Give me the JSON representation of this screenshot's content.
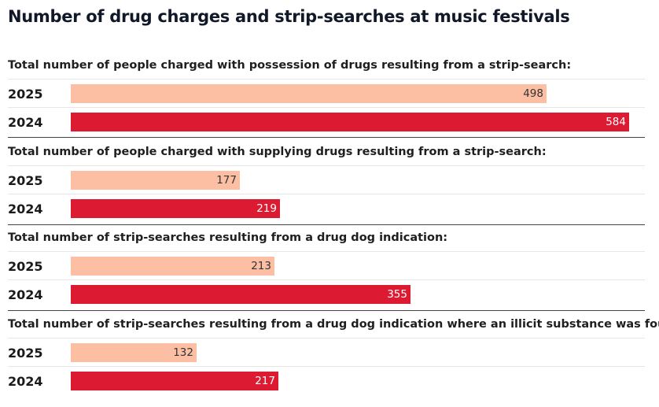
{
  "title": "Number of drug charges and strip-searches at music festivals",
  "colors": {
    "2025": "#fcbfa4",
    "2024": "#dc1a32"
  },
  "chart_data": {
    "type": "bar",
    "orientation": "horizontal",
    "title": "Number of drug charges and strip-searches at music festivals",
    "xlim": [
      0,
      584
    ],
    "groups": [
      {
        "label": "Total number of people charged with possession of drugs resulting from a strip-search:",
        "rows": [
          {
            "year": "2025",
            "value": 498
          },
          {
            "year": "2024",
            "value": 584
          }
        ]
      },
      {
        "label": "Total number of people charged with supplying drugs resulting from a strip-search:",
        "rows": [
          {
            "year": "2025",
            "value": 177
          },
          {
            "year": "2024",
            "value": 219
          }
        ]
      },
      {
        "label": "Total number of strip-searches resulting from a drug dog indication:",
        "rows": [
          {
            "year": "2025",
            "value": 213
          },
          {
            "year": "2024",
            "value": 355
          }
        ]
      },
      {
        "label": "Total number of strip-searches resulting from a drug dog indication where an illicit substance was found:",
        "rows": [
          {
            "year": "2025",
            "value": 132
          },
          {
            "year": "2024",
            "value": 217
          }
        ]
      }
    ]
  }
}
